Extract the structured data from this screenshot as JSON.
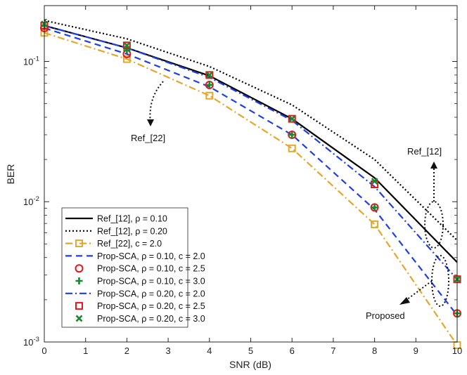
{
  "chart_data": {
    "type": "line",
    "title": "",
    "xlabel": "SNR (dB)",
    "ylabel": "BER",
    "yscale": "log",
    "xlim": [
      0,
      10
    ],
    "ylim": [
      0.001,
      0.25
    ],
    "xticks": [
      "0",
      "1",
      "2",
      "3",
      "4",
      "5",
      "6",
      "7",
      "8",
      "9",
      "10"
    ],
    "yticks": [
      {
        "value": 0.001,
        "base": "10",
        "exp": "-3"
      },
      {
        "value": 0.01,
        "base": "10",
        "exp": "-2"
      },
      {
        "value": 0.1,
        "base": "10",
        "exp": "-1"
      }
    ],
    "legend_position": "bottom-left",
    "series": [
      {
        "id": "ref12-rho010",
        "label": "Ref_[12], ρ = 0.10",
        "color": "#000000",
        "style": "solid",
        "marker": "none",
        "x": [
          0,
          2,
          4,
          6,
          8,
          10
        ],
        "y": [
          0.18,
          0.125,
          0.079,
          0.039,
          0.0148,
          0.0037
        ]
      },
      {
        "id": "ref12-rho020",
        "label": "Ref_[12], ρ = 0.20",
        "color": "#000000",
        "style": "dotted",
        "marker": "none",
        "x": [
          0,
          2,
          4,
          6,
          8,
          10
        ],
        "y": [
          0.196,
          0.145,
          0.092,
          0.049,
          0.02,
          0.0053
        ]
      },
      {
        "id": "ref22-c20",
        "label": "Ref_[22], c = 2.0",
        "color": "#e3a82b",
        "style": "dashdot",
        "marker": "square",
        "x": [
          0,
          2,
          4,
          6,
          8,
          10
        ],
        "y": [
          0.16,
          0.104,
          0.057,
          0.024,
          0.0069,
          0.00095
        ]
      },
      {
        "id": "prop-rho010-c20",
        "label": "Prop-SCA, ρ = 0.10, c = 2.0",
        "color": "#1f3fe0",
        "style": "dashed",
        "marker": "none",
        "x": [
          0,
          2,
          4,
          6,
          8,
          10
        ],
        "y": [
          0.173,
          0.113,
          0.066,
          0.03,
          0.0088,
          0.00155
        ]
      },
      {
        "id": "prop-rho010-c25",
        "label": "Prop-SCA, ρ = 0.10, c = 2.5",
        "color": "#e8141b",
        "style": "none",
        "marker": "circle",
        "x": [
          0,
          2,
          4,
          6,
          8,
          10
        ],
        "y": [
          0.173,
          0.113,
          0.068,
          0.03,
          0.0091,
          0.0016
        ]
      },
      {
        "id": "prop-rho010-c30",
        "label": "Prop-SCA, ρ = 0.10, c = 3.0",
        "color": "#168a2e",
        "style": "none",
        "marker": "plus",
        "x": [
          0,
          2,
          4,
          6,
          8,
          10
        ],
        "y": [
          0.18,
          0.12,
          0.068,
          0.03,
          0.0091,
          0.0016
        ]
      },
      {
        "id": "prop-rho020-c20",
        "label": "Prop-SCA, ρ = 0.20, c = 2.0",
        "color": "#1f3fe0",
        "style": "dashdot",
        "marker": "none",
        "x": [
          0,
          2,
          4,
          6,
          8,
          10
        ],
        "y": [
          0.18,
          0.125,
          0.077,
          0.038,
          0.0128,
          0.0028
        ]
      },
      {
        "id": "prop-rho020-c25",
        "label": "Prop-SCA, ρ = 0.20, c = 2.5",
        "color": "#e8141b",
        "style": "none",
        "marker": "square",
        "x": [
          0,
          2,
          4,
          6,
          8,
          10
        ],
        "y": [
          0.18,
          0.13,
          0.08,
          0.039,
          0.0133,
          0.0028
        ]
      },
      {
        "id": "prop-rho020-c30",
        "label": "Prop-SCA, ρ = 0.20, c = 3.0",
        "color": "#168a2e",
        "style": "none",
        "marker": "x",
        "x": [
          0,
          2,
          4,
          6,
          8,
          10
        ],
        "y": [
          0.185,
          0.13,
          0.08,
          0.039,
          0.014,
          0.0028
        ]
      }
    ],
    "annotations": [
      {
        "id": "ref22",
        "text": "Ref_[22]"
      },
      {
        "id": "ref12",
        "text": "Ref_[12]"
      },
      {
        "id": "proposed",
        "text": "Proposed"
      }
    ]
  }
}
